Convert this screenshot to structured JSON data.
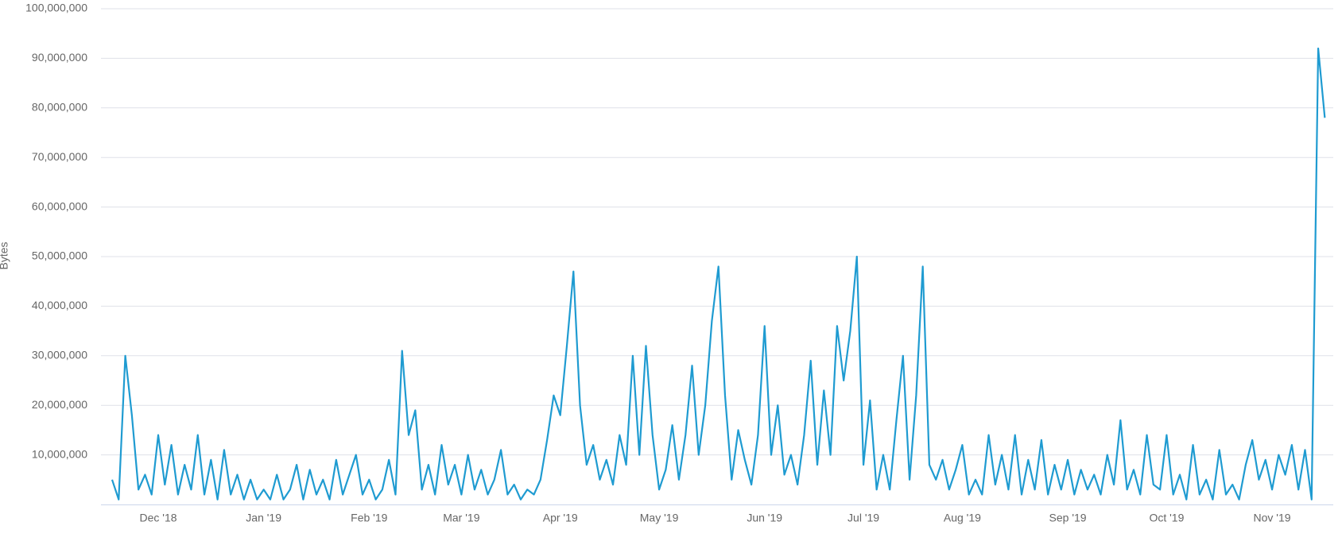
{
  "chart_data": {
    "type": "line",
    "y_label": "Bytes",
    "color": "#1f9bd1",
    "grid": true,
    "ylim": [
      0,
      100000000
    ],
    "yticks": [
      {
        "value": 10000000,
        "label": "10,000,000"
      },
      {
        "value": 20000000,
        "label": "20,000,000"
      },
      {
        "value": 30000000,
        "label": "30,000,000"
      },
      {
        "value": 40000000,
        "label": "40,000,000"
      },
      {
        "value": 50000000,
        "label": "50,000,000"
      },
      {
        "value": 60000000,
        "label": "60,000,000"
      },
      {
        "value": 70000000,
        "label": "70,000,000"
      },
      {
        "value": 80000000,
        "label": "80,000,000"
      },
      {
        "value": 90000000,
        "label": "90,000,000"
      },
      {
        "value": 100000000,
        "label": "100,000,000"
      }
    ],
    "categories": [
      null,
      null,
      null,
      null,
      null,
      null,
      null,
      "Dec '18",
      null,
      null,
      null,
      null,
      null,
      null,
      null,
      null,
      null,
      null,
      null,
      null,
      null,
      null,
      null,
      "Jan '19",
      null,
      null,
      null,
      null,
      null,
      null,
      null,
      null,
      null,
      null,
      null,
      null,
      null,
      null,
      null,
      "Feb '19",
      null,
      null,
      null,
      null,
      null,
      null,
      null,
      null,
      null,
      null,
      null,
      null,
      null,
      "Mar '19",
      null,
      null,
      null,
      null,
      null,
      null,
      null,
      null,
      null,
      null,
      null,
      null,
      null,
      null,
      "Apr '19",
      null,
      null,
      null,
      null,
      null,
      null,
      null,
      null,
      null,
      null,
      null,
      null,
      null,
      null,
      "May '19",
      null,
      null,
      null,
      null,
      null,
      null,
      null,
      null,
      null,
      null,
      null,
      null,
      null,
      null,
      null,
      "Jun '19",
      null,
      null,
      null,
      null,
      null,
      null,
      null,
      null,
      null,
      null,
      null,
      null,
      null,
      null,
      "Jul '19",
      null,
      null,
      null,
      null,
      null,
      null,
      null,
      null,
      null,
      null,
      null,
      null,
      null,
      null,
      "Aug '19",
      null,
      null,
      null,
      null,
      null,
      null,
      null,
      null,
      null,
      null,
      null,
      null,
      null,
      null,
      null,
      "Sep '19",
      null,
      null,
      null,
      null,
      null,
      null,
      null,
      null,
      null,
      null,
      null,
      null,
      null,
      null,
      "Oct '19",
      null,
      null,
      null,
      null,
      null,
      null,
      null,
      null,
      null,
      null,
      null,
      null,
      null,
      null,
      null,
      "Nov '19",
      null,
      null,
      null,
      null,
      null,
      null,
      null,
      null
    ],
    "values": [
      5000000.0,
      1000000.0,
      30000000.0,
      18000000.0,
      3000000.0,
      6000000.0,
      2000000.0,
      14000000.0,
      4000000.0,
      12000000.0,
      2000000.0,
      8000000.0,
      3000000.0,
      14000000.0,
      2000000.0,
      9000000.0,
      1000000.0,
      11000000.0,
      2000000.0,
      6000000.0,
      1000000.0,
      5000000.0,
      1000000.0,
      3000000.0,
      1000000.0,
      6000000.0,
      1000000.0,
      3000000.0,
      8000000.0,
      1000000.0,
      7000000.0,
      2000000.0,
      5000000.0,
      1000000.0,
      9000000.0,
      2000000.0,
      6000000.0,
      10000000.0,
      2000000.0,
      5000000.0,
      1000000.0,
      3000000.0,
      9000000.0,
      2000000.0,
      31000000.0,
      14000000.0,
      19000000.0,
      3000000.0,
      8000000.0,
      2000000.0,
      12000000.0,
      4000000.0,
      8000000.0,
      2000000.0,
      10000000.0,
      3000000.0,
      7000000.0,
      2000000.0,
      5000000.0,
      11000000.0,
      2000000.0,
      4000000.0,
      1000000.0,
      3000000.0,
      2000000.0,
      5000000.0,
      13000000.0,
      22000000.0,
      18000000.0,
      32000000.0,
      47000000.0,
      20000000.0,
      8000000.0,
      12000000.0,
      5000000.0,
      9000000.0,
      4000000.0,
      14000000.0,
      8000000.0,
      30000000.0,
      10000000.0,
      32000000.0,
      14000000.0,
      3000000.0,
      7000000.0,
      16000000.0,
      5000000.0,
      14000000.0,
      28000000.0,
      10000000.0,
      20000000.0,
      37000000.0,
      48000000.0,
      22000000.0,
      5000000.0,
      15000000.0,
      9000000.0,
      4000000.0,
      14000000.0,
      36000000.0,
      10000000.0,
      20000000.0,
      6000000.0,
      10000000.0,
      4000000.0,
      14000000.0,
      29000000.0,
      8000000.0,
      23000000.0,
      10000000.0,
      36000000.0,
      25000000.0,
      35000000.0,
      50000000.0,
      8000000.0,
      21000000.0,
      3000000.0,
      10000000.0,
      3000000.0,
      17000000.0,
      30000000.0,
      5000000.0,
      22000000.0,
      48000000.0,
      8000000.0,
      5000000.0,
      9000000.0,
      3000000.0,
      7000000.0,
      12000000.0,
      2000000.0,
      5000000.0,
      2000000.0,
      14000000.0,
      4000000.0,
      10000000.0,
      3000000.0,
      14000000.0,
      2000000.0,
      9000000.0,
      3000000.0,
      13000000.0,
      2000000.0,
      8000000.0,
      3000000.0,
      9000000.0,
      2000000.0,
      7000000.0,
      3000000.0,
      6000000.0,
      2000000.0,
      10000000.0,
      4000000.0,
      17000000.0,
      3000000.0,
      7000000.0,
      2000000.0,
      14000000.0,
      4000000.0,
      3000000.0,
      14000000.0,
      2000000.0,
      6000000.0,
      1000000.0,
      12000000.0,
      2000000.0,
      5000000.0,
      1000000.0,
      11000000.0,
      2000000.0,
      4000000.0,
      1000000.0,
      8000000.0,
      13000000.0,
      5000000.0,
      9000000.0,
      3000000.0,
      10000000.0,
      6000000.0,
      12000000.0,
      3000000.0,
      11000000.0,
      1000000.0,
      92000000.0,
      78000000.0
    ]
  }
}
